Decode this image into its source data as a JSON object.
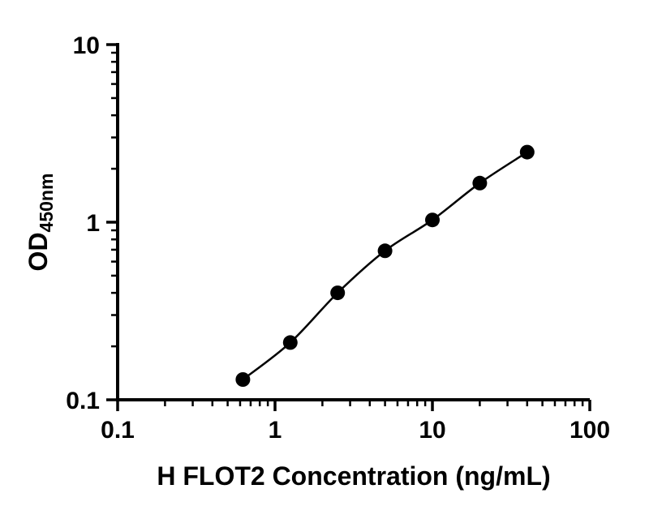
{
  "figure": {
    "background": "#ffffff"
  },
  "chart_data": {
    "type": "scatter",
    "title": "",
    "xlabel": "H FLOT2 Concentration (ng/mL)",
    "ylabel": "OD",
    "ylabel_sub": "450nm",
    "x_scale": "log",
    "y_scale": "log",
    "xlim": [
      0.1,
      100
    ],
    "ylim": [
      0.1,
      10
    ],
    "grid": false,
    "legend": "none",
    "x_ticks": [
      {
        "value": 0.1,
        "label": "0.1"
      },
      {
        "value": 1,
        "label": "1"
      },
      {
        "value": 10,
        "label": "10"
      },
      {
        "value": 100,
        "label": "100"
      }
    ],
    "y_ticks": [
      {
        "value": 0.1,
        "label": "0.1"
      },
      {
        "value": 1,
        "label": "1"
      },
      {
        "value": 10,
        "label": "10"
      }
    ],
    "x_minor_ticks": [
      0.2,
      0.3,
      0.4,
      0.5,
      0.6,
      0.7,
      0.8,
      0.9,
      2,
      3,
      4,
      5,
      6,
      7,
      8,
      9,
      20,
      30,
      40,
      50,
      60,
      70,
      80,
      90
    ],
    "y_minor_ticks": [
      0.2,
      0.3,
      0.4,
      0.5,
      0.6,
      0.7,
      0.8,
      0.9,
      2,
      3,
      4,
      5,
      6,
      7,
      8,
      9
    ],
    "points": [
      {
        "x": 0.625,
        "y": 0.13
      },
      {
        "x": 1.25,
        "y": 0.21
      },
      {
        "x": 2.5,
        "y": 0.4
      },
      {
        "x": 5,
        "y": 0.69
      },
      {
        "x": 10,
        "y": 1.03
      },
      {
        "x": 20,
        "y": 1.66
      },
      {
        "x": 40,
        "y": 2.48
      }
    ],
    "style": {
      "axis_color": "#000000",
      "line_color": "#000000",
      "marker_color": "#000000",
      "background": "#ffffff"
    }
  }
}
